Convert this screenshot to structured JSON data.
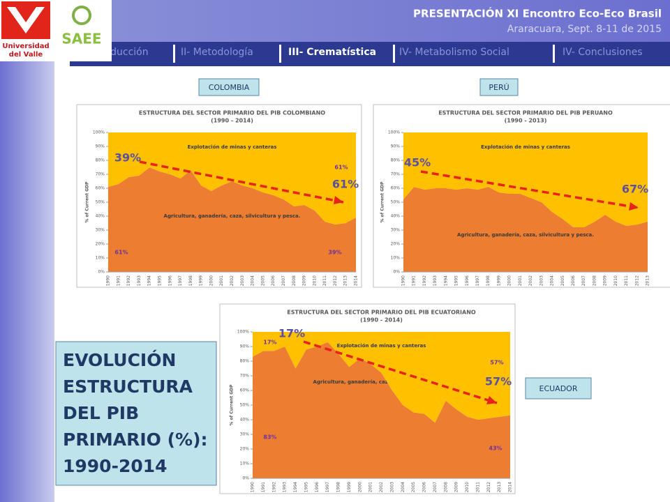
{
  "header": {
    "title": "PRESENTACIÓN XI Encontro Eco-Eco Brasil",
    "subtitle": "Araracuara, Sept. 8-11 de 2015"
  },
  "logos": {
    "univalle": [
      "Universidad",
      "del Valle"
    ],
    "saee": "SAEE"
  },
  "nav": [
    "I- Introducción",
    "II- Metodología",
    "III- Crematística",
    "IV- Metabolismo Social",
    "IV- Conclusiones"
  ],
  "country_labels": [
    "COLOMBIA",
    "PERÚ",
    "ECUADOR"
  ],
  "summary": [
    "EVOLUCIÓN",
    "ESTRUCTURA",
    "DEL PIB",
    "PRIMARIO (%):",
    "1990-2014"
  ],
  "chart_data": [
    {
      "type": "area",
      "title": "ESTRUCTURA DEL SECTOR PRIMARIO DEL PIB COLOMBIANO",
      "subtitle": "(1990 - 2014)",
      "y_label": "% of Current GDP",
      "categories": [
        "1990",
        "1991",
        "1992",
        "1993",
        "1994",
        "1995",
        "1996",
        "1997",
        "1998",
        "1999",
        "2000",
        "2001",
        "2002",
        "2003",
        "2004",
        "2005",
        "2006",
        "2007",
        "2008",
        "2009",
        "2010",
        "2011",
        "2012",
        "2013",
        "2014"
      ],
      "series": [
        {
          "name": "Agricultura, ganadería, caza, silvicultura y pesca.",
          "color": "#ed7d31",
          "values": [
            61,
            63,
            68,
            69,
            75,
            72,
            70,
            67,
            73,
            62,
            58,
            62,
            65,
            62,
            60,
            57,
            55,
            52,
            47,
            48,
            44,
            36,
            34,
            35,
            39
          ]
        },
        {
          "name": "Explotación de minas y canteras",
          "color": "#ffc000",
          "values": [
            39,
            37,
            32,
            31,
            25,
            28,
            30,
            33,
            27,
            38,
            42,
            38,
            35,
            38,
            40,
            43,
            45,
            48,
            53,
            52,
            56,
            64,
            66,
            65,
            61
          ]
        }
      ],
      "stacked": true,
      "ylim": [
        0,
        100
      ],
      "yticks": [
        {
          "value": 0,
          "label": "0%"
        },
        {
          "value": 10,
          "label": "10%"
        },
        {
          "value": 20,
          "label": "20%"
        },
        {
          "value": 30,
          "label": "30%"
        },
        {
          "value": 40,
          "label": "40%"
        },
        {
          "value": 50,
          "label": "50%"
        },
        {
          "value": 60,
          "label": "60%"
        },
        {
          "value": 70,
          "label": "70%"
        },
        {
          "value": 80,
          "label": "80%"
        },
        {
          "value": 90,
          "label": "90%"
        },
        {
          "value": 100,
          "label": "100%"
        }
      ],
      "annotations": [
        "61%",
        "61%",
        "39%",
        "39%",
        "61%"
      ]
    },
    {
      "type": "area",
      "title": "ESTRUCTURA DEL SECTOR PRIMARIO DEL PIB PERUANO",
      "subtitle": "(1990 - 2013)",
      "y_label": "% of Current GDP",
      "categories": [
        "1990",
        "1991",
        "1992",
        "1993",
        "1994",
        "1995",
        "1996",
        "1997",
        "1998",
        "1999",
        "2000",
        "2001",
        "2002",
        "2003",
        "2004",
        "2005",
        "2006",
        "2007",
        "2008",
        "2009",
        "2010",
        "2011",
        "2012",
        "2013"
      ],
      "series": [
        {
          "name": "Agricultura, ganadería, caza, silvicultura y pesca.",
          "color": "#ed7d31",
          "values": [
            52,
            61,
            59,
            60,
            60,
            59,
            60,
            59,
            61,
            57,
            56,
            56,
            53,
            50,
            43,
            38,
            32,
            32,
            36,
            41,
            36,
            33,
            34,
            36
          ]
        },
        {
          "name": "Explotación de minas y canteras",
          "color": "#ffc000",
          "values": [
            48,
            39,
            41,
            40,
            40,
            41,
            40,
            41,
            39,
            43,
            44,
            44,
            47,
            50,
            57,
            62,
            68,
            68,
            64,
            59,
            64,
            67,
            66,
            64
          ]
        }
      ],
      "stacked": true,
      "ylim": [
        0,
        100
      ],
      "yticks": [
        {
          "value": 0,
          "label": "0%"
        },
        {
          "value": 10,
          "label": "10%"
        },
        {
          "value": 20,
          "label": "20%"
        },
        {
          "value": 30,
          "label": "30%"
        },
        {
          "value": 40,
          "label": "40%"
        },
        {
          "value": 50,
          "label": "50%"
        },
        {
          "value": 60,
          "label": "60%"
        },
        {
          "value": 70,
          "label": "70%"
        },
        {
          "value": 80,
          "label": "80%"
        },
        {
          "value": 90,
          "label": "90%"
        },
        {
          "value": 100,
          "label": "100%"
        }
      ],
      "annotations": [
        "45%",
        "67%"
      ]
    },
    {
      "type": "area",
      "title": "ESTRUCTURA DEL SECTOR PRIMARIO DEL PIB ECUATORIANO",
      "subtitle": "(1990 - 2014)",
      "y_label": "% of Current GDP",
      "categories": [
        "1990",
        "1991",
        "1992",
        "1993",
        "1994",
        "1995",
        "1996",
        "1997",
        "1998",
        "1999",
        "2000",
        "2001",
        "2002",
        "2003",
        "2004",
        "2005",
        "2006",
        "2007",
        "2008",
        "2009",
        "2010",
        "2011",
        "2012",
        "2013",
        "2014"
      ],
      "series": [
        {
          "name": "Agricultura, ganadería, caza, silvicultura y pesca.",
          "color": "#ed7d31",
          "values": [
            83,
            87,
            87,
            90,
            75,
            88,
            90,
            93,
            85,
            76,
            82,
            78,
            72,
            60,
            50,
            45,
            44,
            38,
            53,
            47,
            42,
            40,
            41,
            42,
            43
          ]
        },
        {
          "name": "Explotación de minas y canteras",
          "color": "#ffc000",
          "values": [
            17,
            13,
            13,
            10,
            25,
            12,
            10,
            7,
            15,
            24,
            18,
            22,
            28,
            40,
            50,
            55,
            56,
            62,
            47,
            53,
            58,
            60,
            59,
            58,
            57
          ]
        }
      ],
      "stacked": true,
      "ylim": [
        0,
        100
      ],
      "yticks": [
        {
          "value": 0,
          "label": "0%"
        },
        {
          "value": 10,
          "label": "10%"
        },
        {
          "value": 20,
          "label": "20%"
        },
        {
          "value": 30,
          "label": "30%"
        },
        {
          "value": 40,
          "label": "40%"
        },
        {
          "value": 50,
          "label": "50%"
        },
        {
          "value": 60,
          "label": "60%"
        },
        {
          "value": 70,
          "label": "70%"
        },
        {
          "value": 80,
          "label": "80%"
        },
        {
          "value": 90,
          "label": "90%"
        },
        {
          "value": 100,
          "label": "100%"
        }
      ],
      "annotations": [
        "17%",
        "57%",
        "83%",
        "43%",
        "17%",
        "57%"
      ]
    }
  ]
}
